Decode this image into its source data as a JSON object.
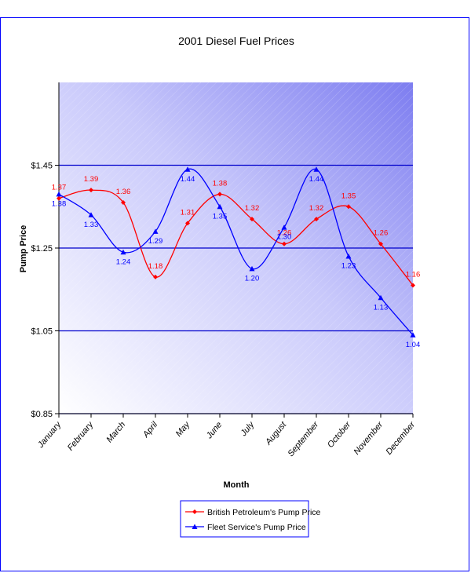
{
  "chart_data": {
    "type": "line",
    "title": "2001 Diesel Fuel Prices",
    "xlabel": "Month",
    "ylabel": "Pump Price",
    "categories": [
      "January",
      "February",
      "March",
      "April",
      "May",
      "June",
      "July",
      "August",
      "September",
      "October",
      "November",
      "December"
    ],
    "ylim": [
      0.85,
      1.65
    ],
    "yticks": [
      0.85,
      1.05,
      1.25,
      1.45
    ],
    "ytick_labels": [
      "$0.85",
      "$1.05",
      "$1.25",
      "$1.45"
    ],
    "grid": true,
    "legend_position": "bottom",
    "smooth": true,
    "series": [
      {
        "name": "British Petroleum's Pump Price",
        "color": "#ff0000",
        "marker": "diamond",
        "values": [
          1.37,
          1.39,
          1.36,
          1.18,
          1.31,
          1.38,
          1.32,
          1.26,
          1.32,
          1.35,
          1.26,
          1.16
        ],
        "labels": [
          "1.37",
          "1.39",
          "1.36",
          "1.18",
          "1.31",
          "1.38",
          "1.32",
          "1.26",
          "1.32",
          "1.35",
          "1.26",
          "1.16"
        ]
      },
      {
        "name": "Fleet Service's Pump Price",
        "color": "#0000ff",
        "marker": "triangle",
        "values": [
          1.38,
          1.33,
          1.24,
          1.29,
          1.44,
          1.35,
          1.2,
          1.3,
          1.44,
          1.23,
          1.13,
          1.04
        ],
        "labels": [
          "1.38",
          "1.33",
          "1.24",
          "1.29",
          "1.44",
          "1.35",
          "1.20",
          "1.30",
          "1.44",
          "1.23",
          "1.13",
          "1.04"
        ]
      }
    ]
  }
}
